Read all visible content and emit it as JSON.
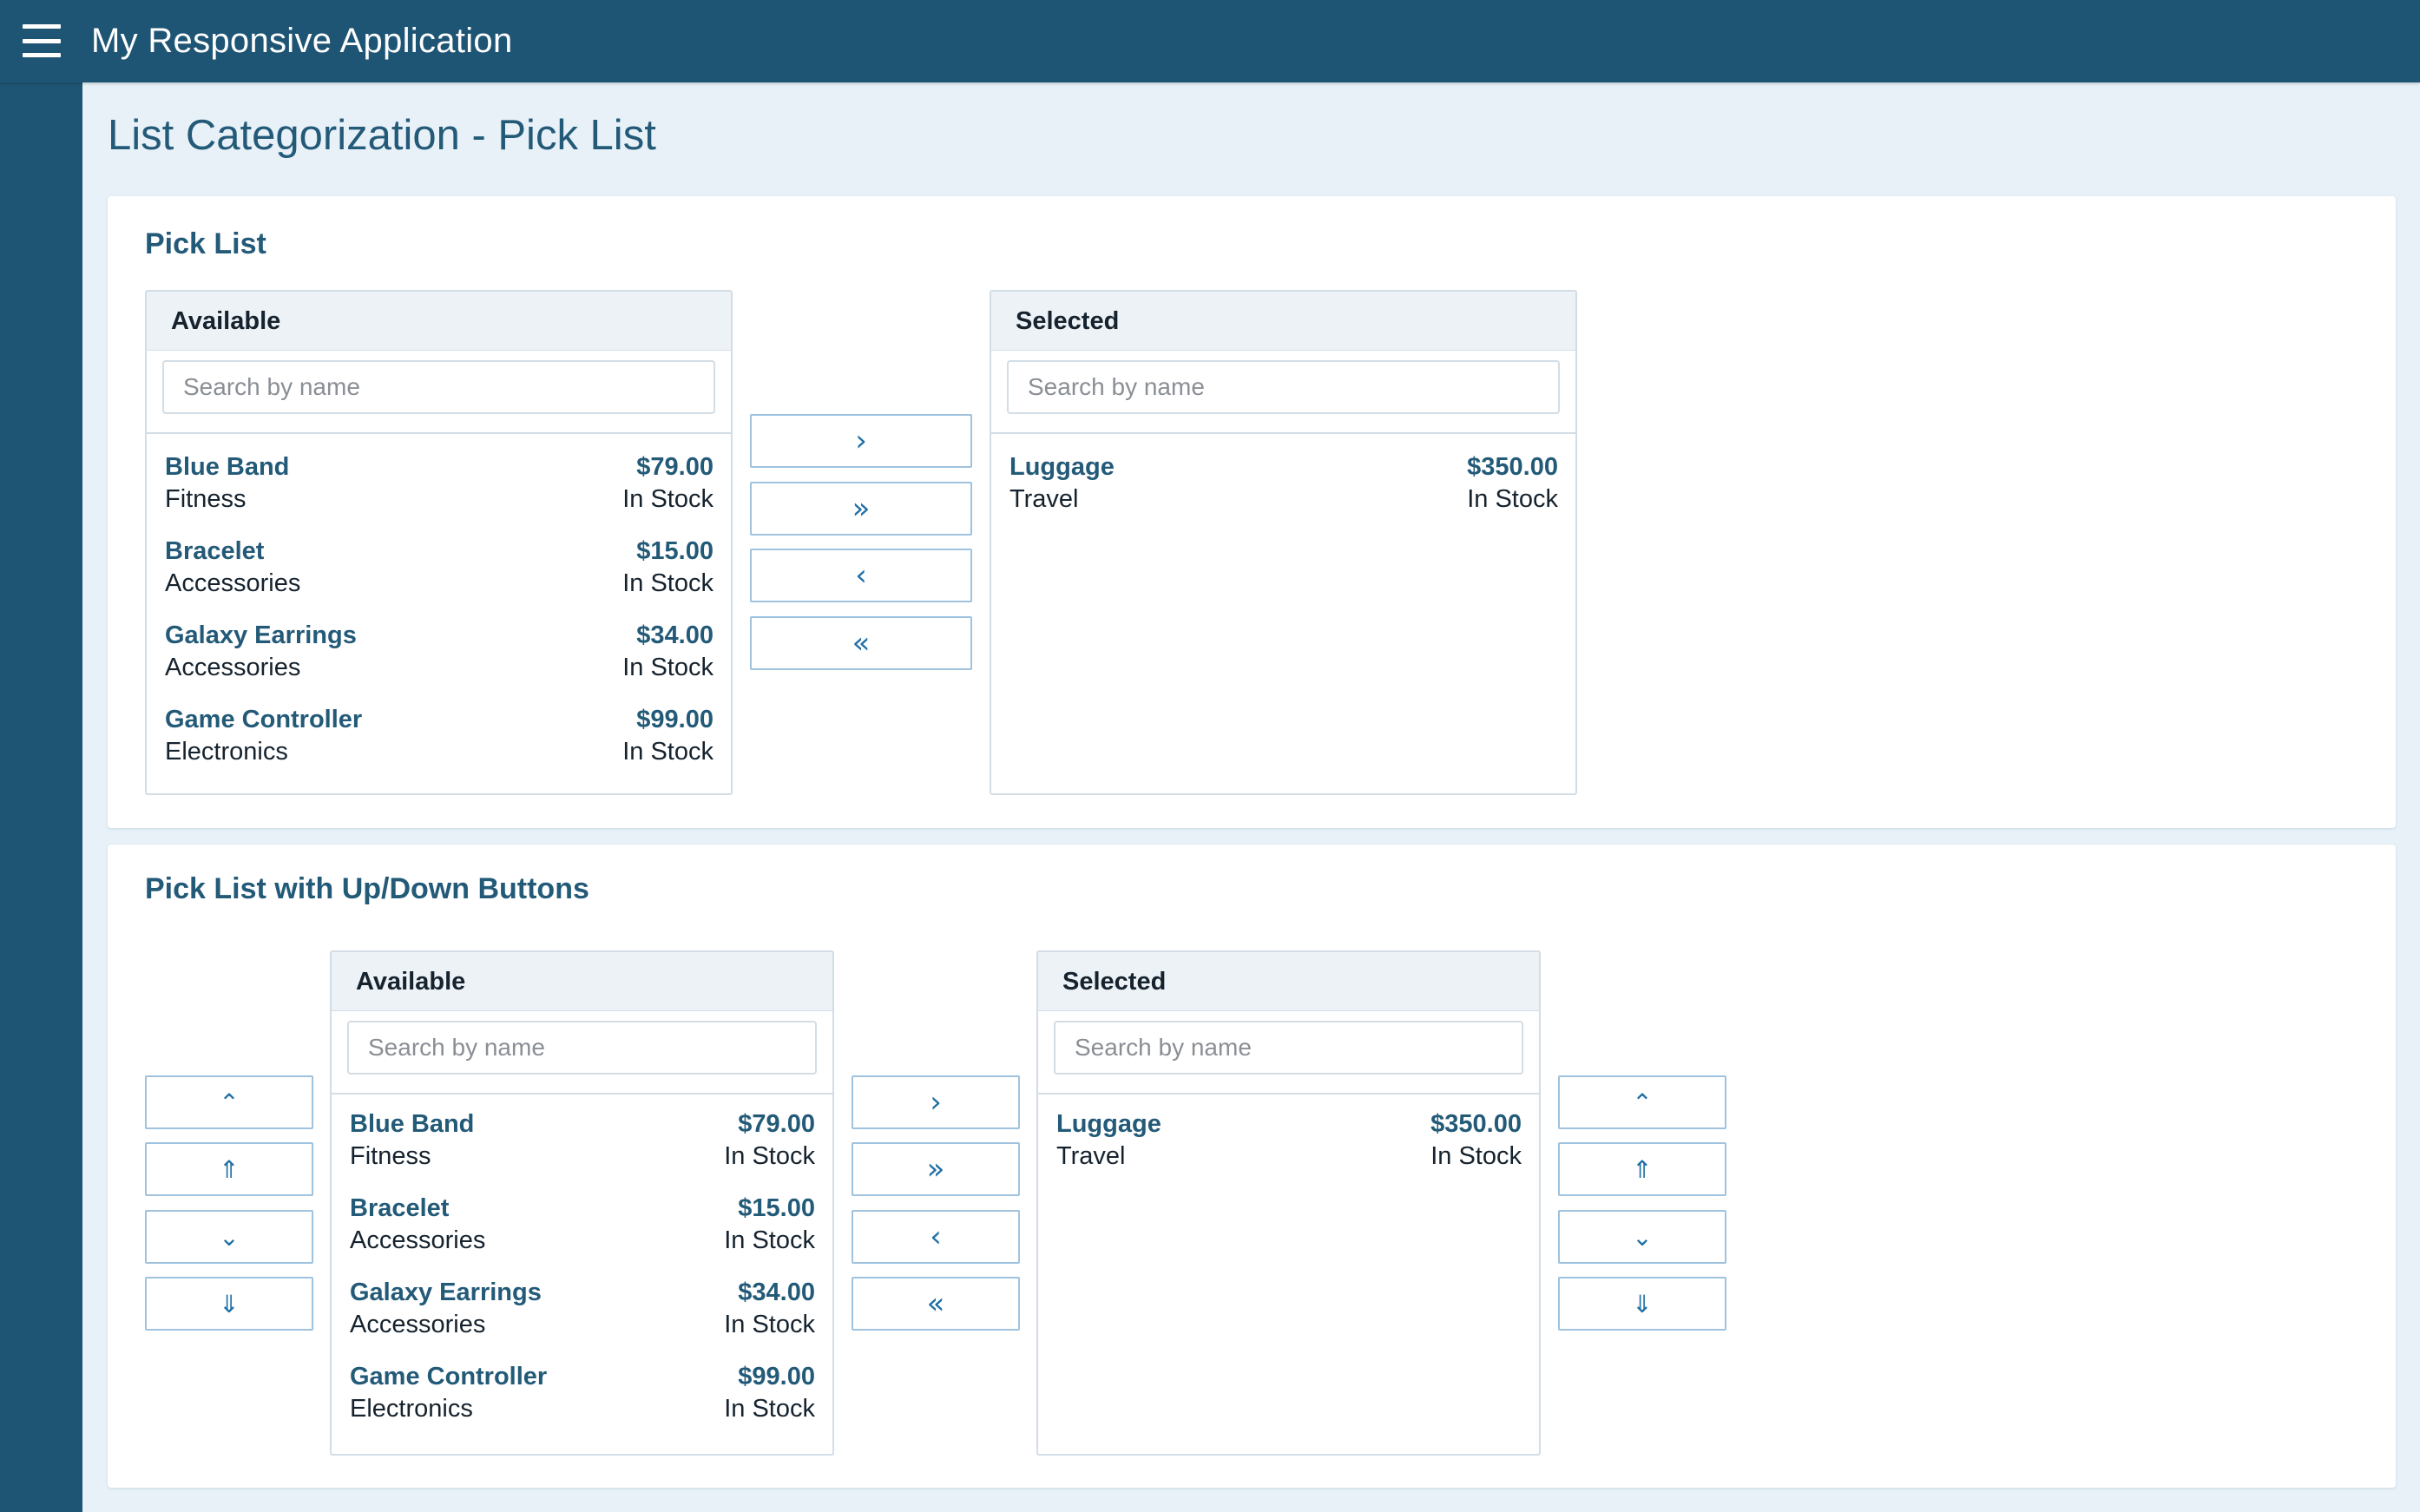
{
  "app": {
    "title": "My Responsive Application"
  },
  "page": {
    "title": "List Categorization - Pick List"
  },
  "search_placeholder": "Search by name",
  "pick_list_1": {
    "title": "Pick List",
    "available": {
      "header": "Available",
      "items": [
        {
          "name": "Blue Band",
          "category": "Fitness",
          "price": "$79.00",
          "status": "In Stock"
        },
        {
          "name": "Bracelet",
          "category": "Accessories",
          "price": "$15.00",
          "status": "In Stock"
        },
        {
          "name": "Galaxy Earrings",
          "category": "Accessories",
          "price": "$34.00",
          "status": "In Stock"
        },
        {
          "name": "Game Controller",
          "category": "Electronics",
          "price": "$99.00",
          "status": "In Stock"
        }
      ]
    },
    "selected": {
      "header": "Selected",
      "items": [
        {
          "name": "Luggage",
          "category": "Travel",
          "price": "$350.00",
          "status": "In Stock"
        }
      ]
    },
    "transfer_buttons": [
      {
        "icon": "chevron-right-icon",
        "glyph": "›"
      },
      {
        "icon": "double-chevron-right-icon",
        "glyph": "»"
      },
      {
        "icon": "chevron-left-icon",
        "glyph": "‹"
      },
      {
        "icon": "double-chevron-left-icon",
        "glyph": "«"
      }
    ]
  },
  "pick_list_2": {
    "title": "Pick List with Up/Down Buttons",
    "available": {
      "header": "Available",
      "items": [
        {
          "name": "Blue Band",
          "category": "Fitness",
          "price": "$79.00",
          "status": "In Stock"
        },
        {
          "name": "Bracelet",
          "category": "Accessories",
          "price": "$15.00",
          "status": "In Stock"
        },
        {
          "name": "Galaxy Earrings",
          "category": "Accessories",
          "price": "$34.00",
          "status": "In Stock"
        },
        {
          "name": "Game Controller",
          "category": "Electronics",
          "price": "$99.00",
          "status": "In Stock"
        }
      ]
    },
    "selected": {
      "header": "Selected",
      "items": [
        {
          "name": "Luggage",
          "category": "Travel",
          "price": "$350.00",
          "status": "In Stock"
        }
      ]
    },
    "reorder_buttons": [
      {
        "icon": "chevron-up-icon",
        "glyph": "⌃"
      },
      {
        "icon": "double-chevron-up-icon",
        "glyph": "⇑"
      },
      {
        "icon": "chevron-down-icon",
        "glyph": "⌄"
      },
      {
        "icon": "double-chevron-down-icon",
        "glyph": "⇓"
      }
    ],
    "transfer_buttons": [
      {
        "icon": "chevron-right-icon",
        "glyph": "›"
      },
      {
        "icon": "double-chevron-right-icon",
        "glyph": "»"
      },
      {
        "icon": "chevron-left-icon",
        "glyph": "‹"
      },
      {
        "icon": "double-chevron-left-icon",
        "glyph": "«"
      }
    ]
  },
  "colors": {
    "topbar": "#1e5474",
    "page_bg": "#e8f1f8",
    "accent_text": "#235a78",
    "button_border": "#9fc3df",
    "button_icon": "#1f6fa6"
  }
}
